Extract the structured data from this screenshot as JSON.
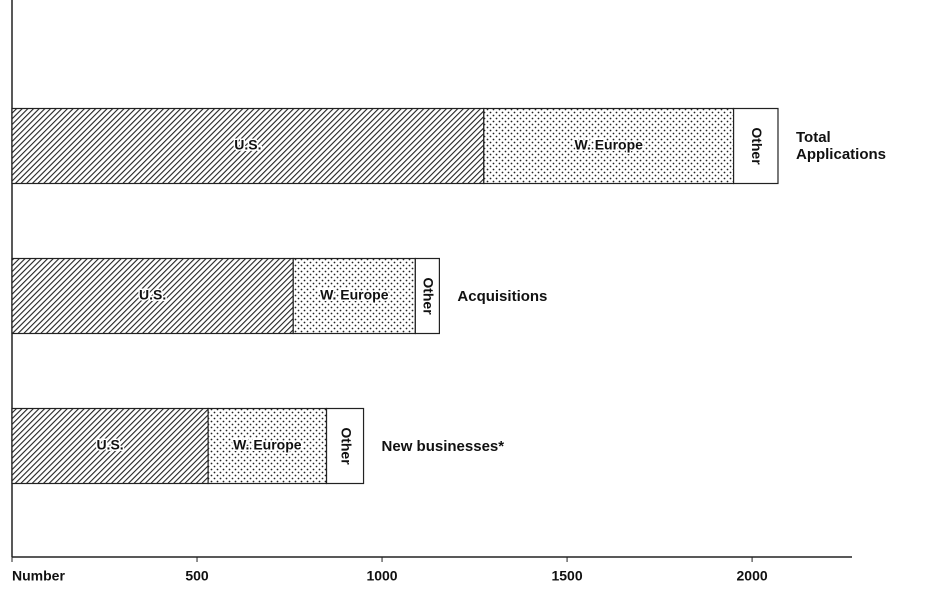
{
  "chart_data": {
    "type": "stacked_barh",
    "categories": [
      "Total Applications",
      "Acquisitions",
      "New businesses*"
    ],
    "series": [
      {
        "name": "U.S.",
        "color": "#222222",
        "pattern": "hatch",
        "values": [
          1275,
          760,
          530
        ]
      },
      {
        "name": "W. Europe",
        "color": "#222222",
        "pattern": "dots",
        "values": [
          675,
          330,
          320
        ]
      },
      {
        "name": "Other",
        "color": "#222222",
        "pattern": "none",
        "values": [
          120,
          65,
          100
        ]
      }
    ],
    "xlim": [
      0,
      2270
    ],
    "xticks": [
      {
        "value": 0,
        "label": "Number"
      },
      500,
      1000,
      1500,
      2000
    ]
  }
}
